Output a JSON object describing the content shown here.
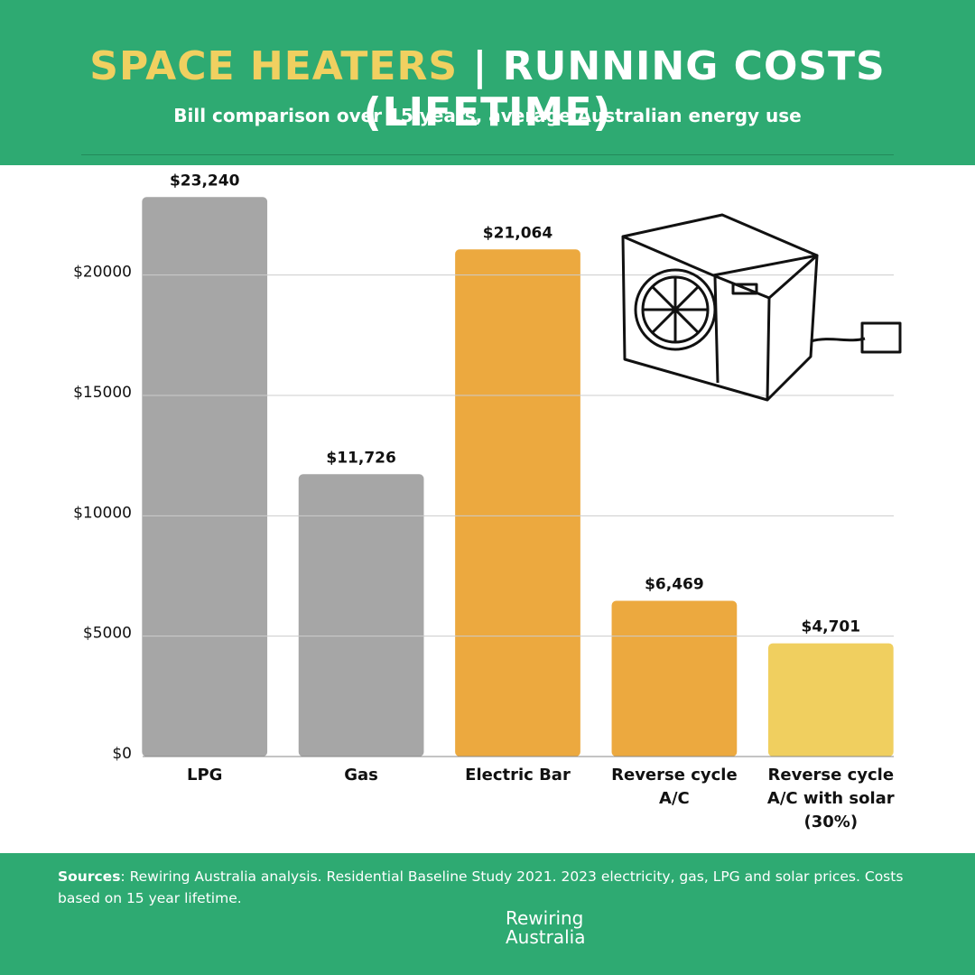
{
  "chart_data": {
    "type": "bar",
    "title": {
      "highlight": "SPACE HEATERS",
      "separator": "|",
      "main": "RUNNING COSTS (LIFETIME)"
    },
    "subtitle": "Bill comparison over 15 years, average Australian energy use",
    "categories": [
      "LPG",
      "Gas",
      "Electric Bar",
      "Reverse cycle A/C",
      "Reverse cycle A/C with solar (30%)"
    ],
    "values": [
      23240,
      11726,
      21064,
      6469,
      4701
    ],
    "value_labels": [
      "$23,240",
      "$11,726",
      "$21,064",
      "$6,469",
      "$4,701"
    ],
    "colors": [
      "#a6a6a6",
      "#a6a6a6",
      "#eca93f",
      "#eca93f",
      "#f0cf5f"
    ],
    "ylim": [
      0,
      24000
    ],
    "yticks": [
      {
        "value": 0,
        "label": "$0"
      },
      {
        "value": 5000,
        "label": "$5000"
      },
      {
        "value": 10000,
        "label": "$10000"
      },
      {
        "value": 15000,
        "label": "$15000"
      },
      {
        "value": 20000,
        "label": "$20000"
      }
    ],
    "grid": true,
    "sources_label": "Sources",
    "sources_text": ": Rewiring Australia analysis. Residential Baseline Study 2021. 2023 electricity, gas, LPG and solar prices. Costs based on 15 year lifetime.",
    "logo": "Rewiring Australia"
  }
}
